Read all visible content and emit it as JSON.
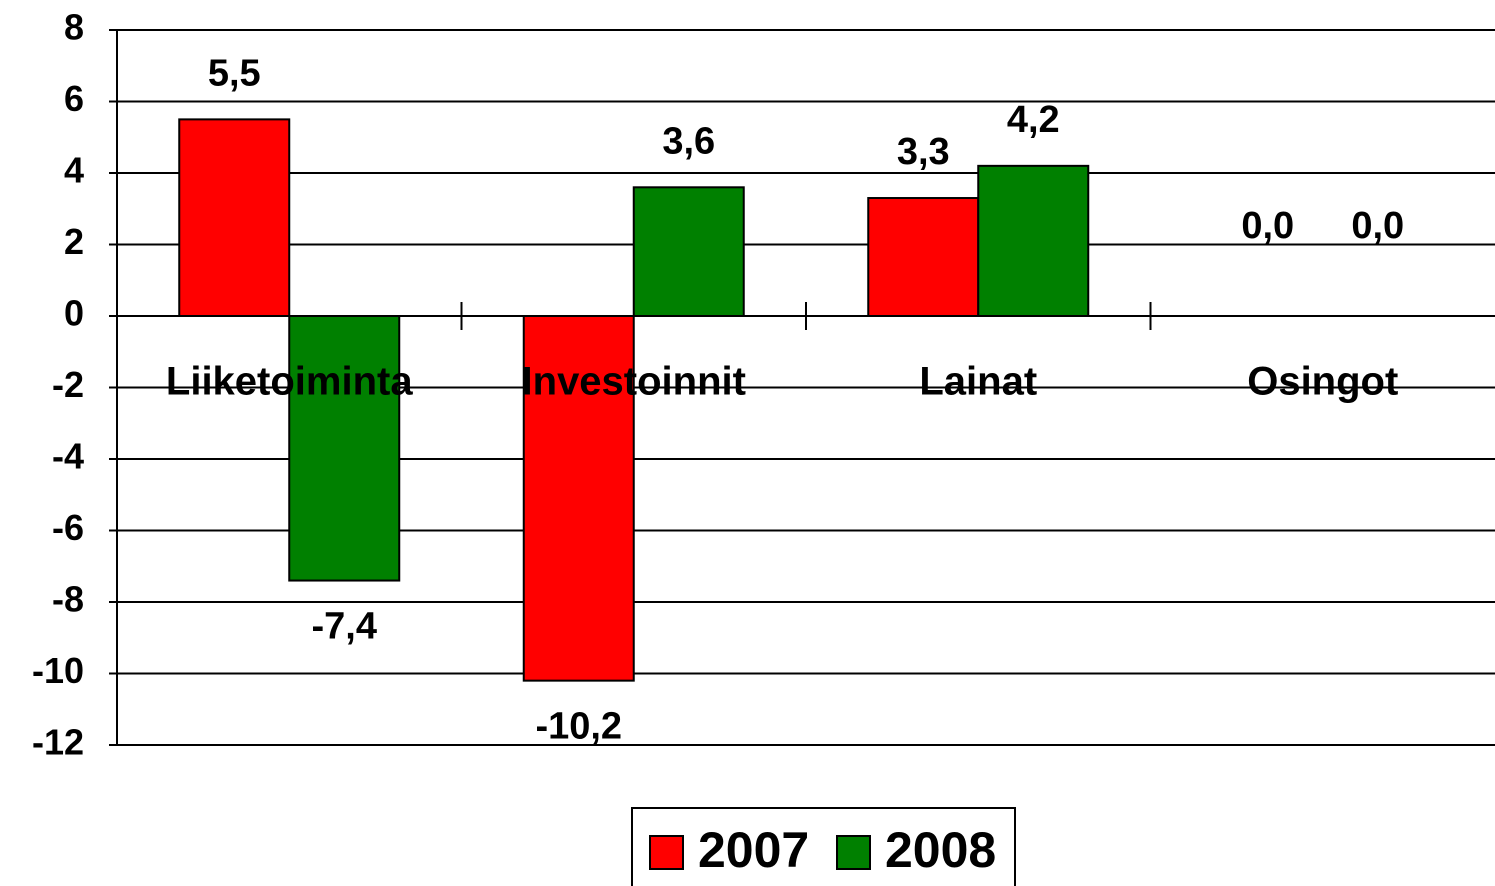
{
  "chart_data": {
    "type": "bar",
    "categories": [
      "Liiketoiminta",
      "Investoinnit",
      "Lainat",
      "Osingot"
    ],
    "series": [
      {
        "name": "2007",
        "color": "#ff0000",
        "values": [
          5.5,
          -10.2,
          3.3,
          0.0
        ],
        "value_labels": [
          "5,5",
          "-10,2",
          "3,3",
          "0,0"
        ]
      },
      {
        "name": "2008",
        "color": "#008000",
        "values": [
          -7.4,
          3.6,
          4.2,
          0.0
        ],
        "value_labels": [
          "-7,4",
          "3,6",
          "4,2",
          "0,0"
        ]
      }
    ],
    "ylim": [
      -12,
      8
    ],
    "yticks": [
      -12,
      -10,
      -8,
      -6,
      -4,
      -2,
      0,
      2,
      4,
      6,
      8
    ],
    "grid": true,
    "legend": "bottom"
  }
}
